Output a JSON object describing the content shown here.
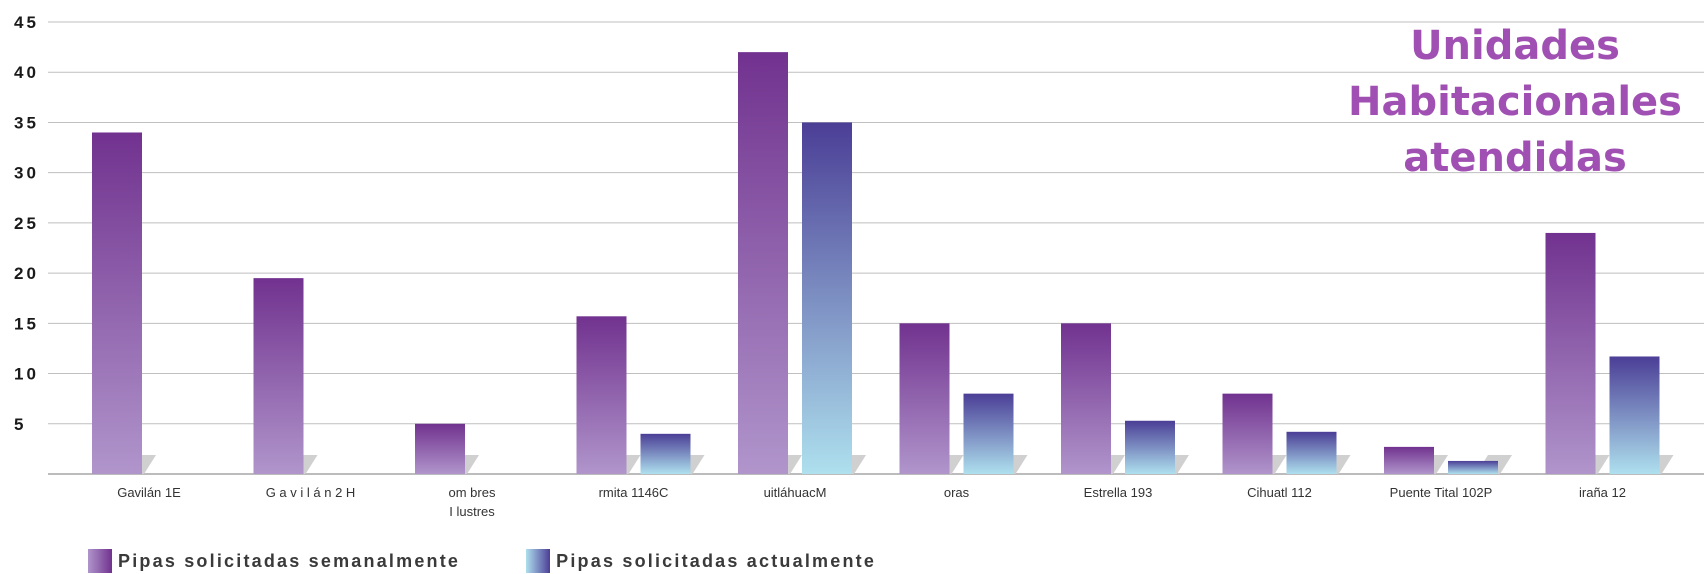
{
  "chart_data": {
    "type": "bar",
    "title": [
      "Unidades",
      "Habitacionales",
      "atendidas"
    ],
    "categories": [
      "Gavilán  1E",
      "G a v i l á n  2 H",
      "om bres\nI lustres",
      "rmita  1146C",
      "uitláhuacM",
      "oras",
      "Estrella  193",
      "Cihuatl 112",
      "Puente Tital  102P",
      "iraña  12"
    ],
    "series": [
      {
        "name": "Pipas solicitadas semanalmente",
        "values": [
          34,
          19.5,
          5,
          15.7,
          42,
          15,
          15,
          8,
          2.7,
          24
        ]
      },
      {
        "name": "Pipas solicitadas  actualmente",
        "values": [
          null,
          null,
          null,
          4,
          35,
          8,
          5.3,
          4.2,
          1.3,
          11.7
        ]
      }
    ],
    "yticks": [
      5,
      10,
      15,
      20,
      25,
      30,
      35,
      40,
      45
    ],
    "ylim": [
      0,
      45
    ],
    "grid": true,
    "legend_position": "bottom-left",
    "colors": {
      "series1_top": "#71328f",
      "series1_bottom": "#b095cb",
      "series2_top": "#4b3e96",
      "series2_bottom": "#aee0ee",
      "title": "#a04fb2",
      "grid": "#bfbfbf",
      "floor_shadow": "#d0d0d0"
    }
  }
}
